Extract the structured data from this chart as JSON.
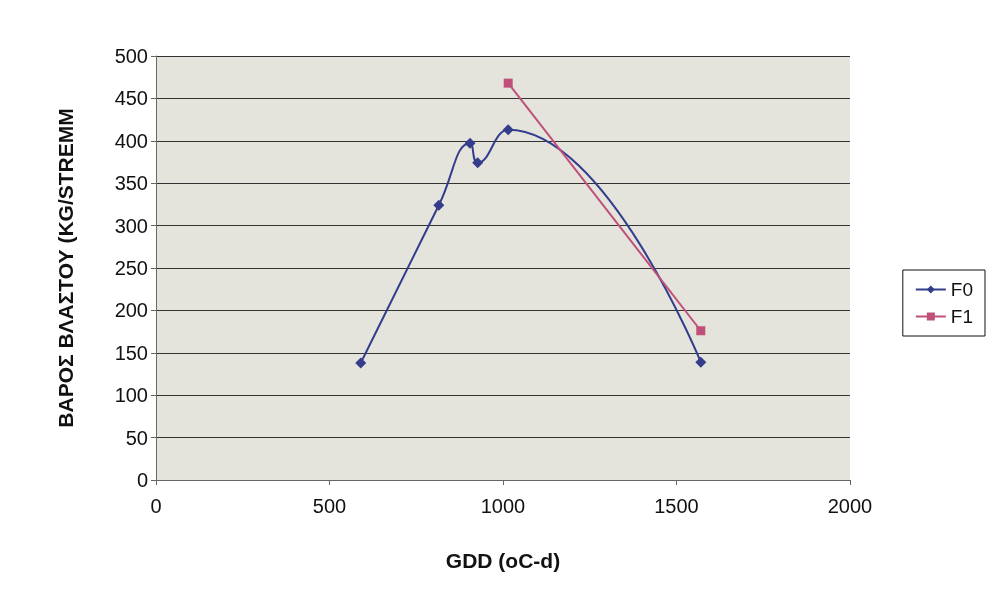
{
  "chart_data": {
    "type": "line",
    "xlabel": "GDD (oC-d)",
    "ylabel": "ΒΑΡΟΣ ΒΛΑΣΤΟΥ (KG/STREMM",
    "xlim": [
      0,
      2000
    ],
    "xticks": [
      0,
      500,
      1000,
      1500,
      2000
    ],
    "ylim": [
      0,
      500
    ],
    "yticks": [
      0,
      50,
      100,
      150,
      200,
      250,
      300,
      350,
      400,
      450,
      500
    ],
    "grid": "y",
    "legend": "right",
    "series": [
      {
        "name": "F0",
        "color": "#333d8c",
        "marker": "diamond",
        "x": [
          590,
          815,
          905,
          927,
          1015,
          1570
        ],
        "values": [
          138,
          324,
          397,
          374,
          413,
          139
        ]
      },
      {
        "name": "F1",
        "color": "#c0507a",
        "marker": "square",
        "x": [
          1015,
          1570
        ],
        "values": [
          468,
          176
        ]
      }
    ]
  }
}
